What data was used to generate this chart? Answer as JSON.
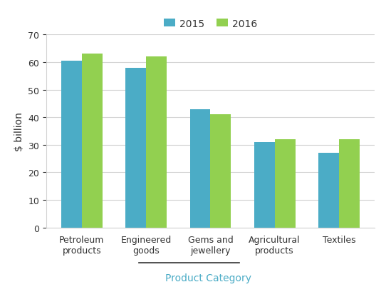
{
  "categories": [
    "Petroleum\nproducts",
    "Engineered\ngoods",
    "Gems and\njewellery",
    "Agricultural\nproducts",
    "Textiles"
  ],
  "values_2015": [
    60.5,
    58,
    43,
    31,
    27
  ],
  "values_2016": [
    63,
    62,
    41,
    32,
    32
  ],
  "color_2015": "#4bacc6",
  "color_2016": "#92d050",
  "ylabel": "$ billion",
  "xlabel": "Product Category",
  "ylim": [
    0,
    70
  ],
  "yticks": [
    0,
    10,
    20,
    30,
    40,
    50,
    60,
    70
  ],
  "legend_labels": [
    "2015",
    "2016"
  ],
  "bar_width": 0.32,
  "axis_label_fontsize": 10,
  "tick_fontsize": 9,
  "legend_fontsize": 10,
  "ylabel_color": "#333333",
  "xlabel_color": "#4bacc6",
  "tick_label_color": "#333333"
}
